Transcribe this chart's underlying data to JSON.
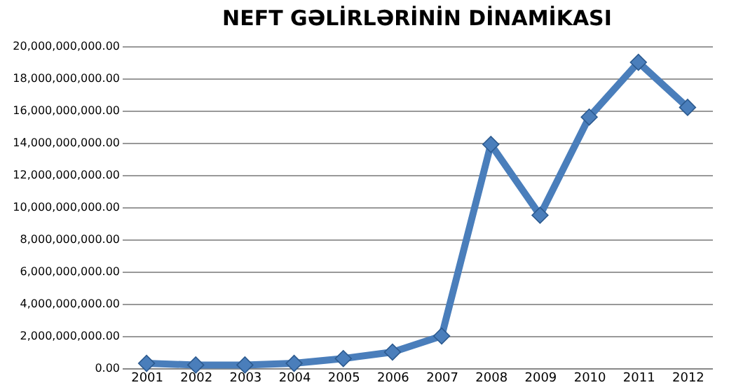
{
  "chart_data": {
    "type": "line",
    "title": "NEFT GƏLİRLƏRİNİN DİNAMİKASI",
    "categories": [
      "2001",
      "2002",
      "2003",
      "2004",
      "2005",
      "2006",
      "2007",
      "2008",
      "2009",
      "2010",
      "2011",
      "2012"
    ],
    "series": [
      {
        "color": "#4a7ebb",
        "values": [
          300000000,
          200000000,
          200000000,
          300000000,
          600000000,
          1000000000,
          2000000000,
          13900000000,
          9500000000,
          15600000000,
          19000000000,
          16200000000
        ]
      }
    ],
    "ylim": [
      0,
      20000000000
    ],
    "yticks": [
      {
        "value": 0,
        "label": "0.00"
      },
      {
        "value": 2000000000,
        "label": "2,000,000,000.00"
      },
      {
        "value": 4000000000,
        "label": "4,000,000,000.00"
      },
      {
        "value": 6000000000,
        "label": "6,000,000,000.00"
      },
      {
        "value": 8000000000,
        "label": "8,000,000,000.00"
      },
      {
        "value": 10000000000,
        "label": "10,000,000,000.00"
      },
      {
        "value": 12000000000,
        "label": "12,000,000,000.00"
      },
      {
        "value": 14000000000,
        "label": "14,000,000,000.00"
      },
      {
        "value": 16000000000,
        "label": "16,000,000,000.00"
      },
      {
        "value": 18000000000,
        "label": "18,000,000,000.00"
      },
      {
        "value": 20000000000,
        "label": "20,000,000,000.00"
      }
    ],
    "grid": "y",
    "marker": "diamond",
    "line_style": "solid"
  }
}
